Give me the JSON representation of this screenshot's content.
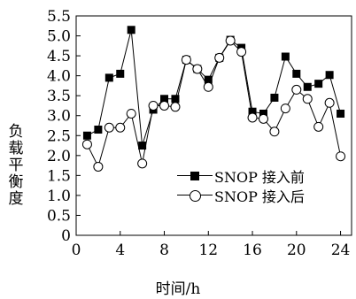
{
  "chart_data": {
    "type": "line",
    "xlabel": "时间/h",
    "ylabel": "负载平衡度",
    "xlim": [
      0,
      25
    ],
    "ylim": [
      0,
      5.5
    ],
    "xticks": [
      "0",
      "4",
      "8",
      "12",
      "16",
      "20",
      "24"
    ],
    "yticks": [
      "0",
      "0.5",
      "1.0",
      "1.5",
      "2.0",
      "2.5",
      "3.0",
      "3.5",
      "4.0",
      "4.5",
      "5.0",
      "5.5"
    ],
    "legend_position": "center-right",
    "x": [
      1,
      2,
      3,
      4,
      5,
      6,
      7,
      8,
      9,
      10,
      11,
      12,
      13,
      14,
      15,
      16,
      17,
      18,
      19,
      20,
      21,
      22,
      23,
      24
    ],
    "series": [
      {
        "name": "SNOP 接入前",
        "marker": "filled-square",
        "values": [
          2.5,
          2.65,
          3.95,
          4.05,
          5.15,
          2.25,
          3.15,
          3.42,
          3.42,
          4.4,
          4.17,
          3.9,
          4.45,
          4.9,
          4.7,
          3.1,
          3.05,
          3.45,
          4.48,
          4.05,
          3.72,
          3.8,
          4.02,
          3.05
        ]
      },
      {
        "name": "SNOP 接入后",
        "marker": "open-circle",
        "values": [
          2.28,
          1.72,
          2.7,
          2.7,
          3.05,
          1.8,
          3.25,
          3.25,
          3.22,
          4.4,
          4.17,
          3.72,
          4.45,
          4.88,
          4.6,
          2.95,
          2.92,
          2.6,
          3.18,
          3.65,
          3.42,
          2.72,
          3.32,
          1.98
        ]
      }
    ]
  },
  "legend": [
    {
      "label": "SNOP 接入前"
    },
    {
      "label": "SNOP 接入后"
    }
  ]
}
